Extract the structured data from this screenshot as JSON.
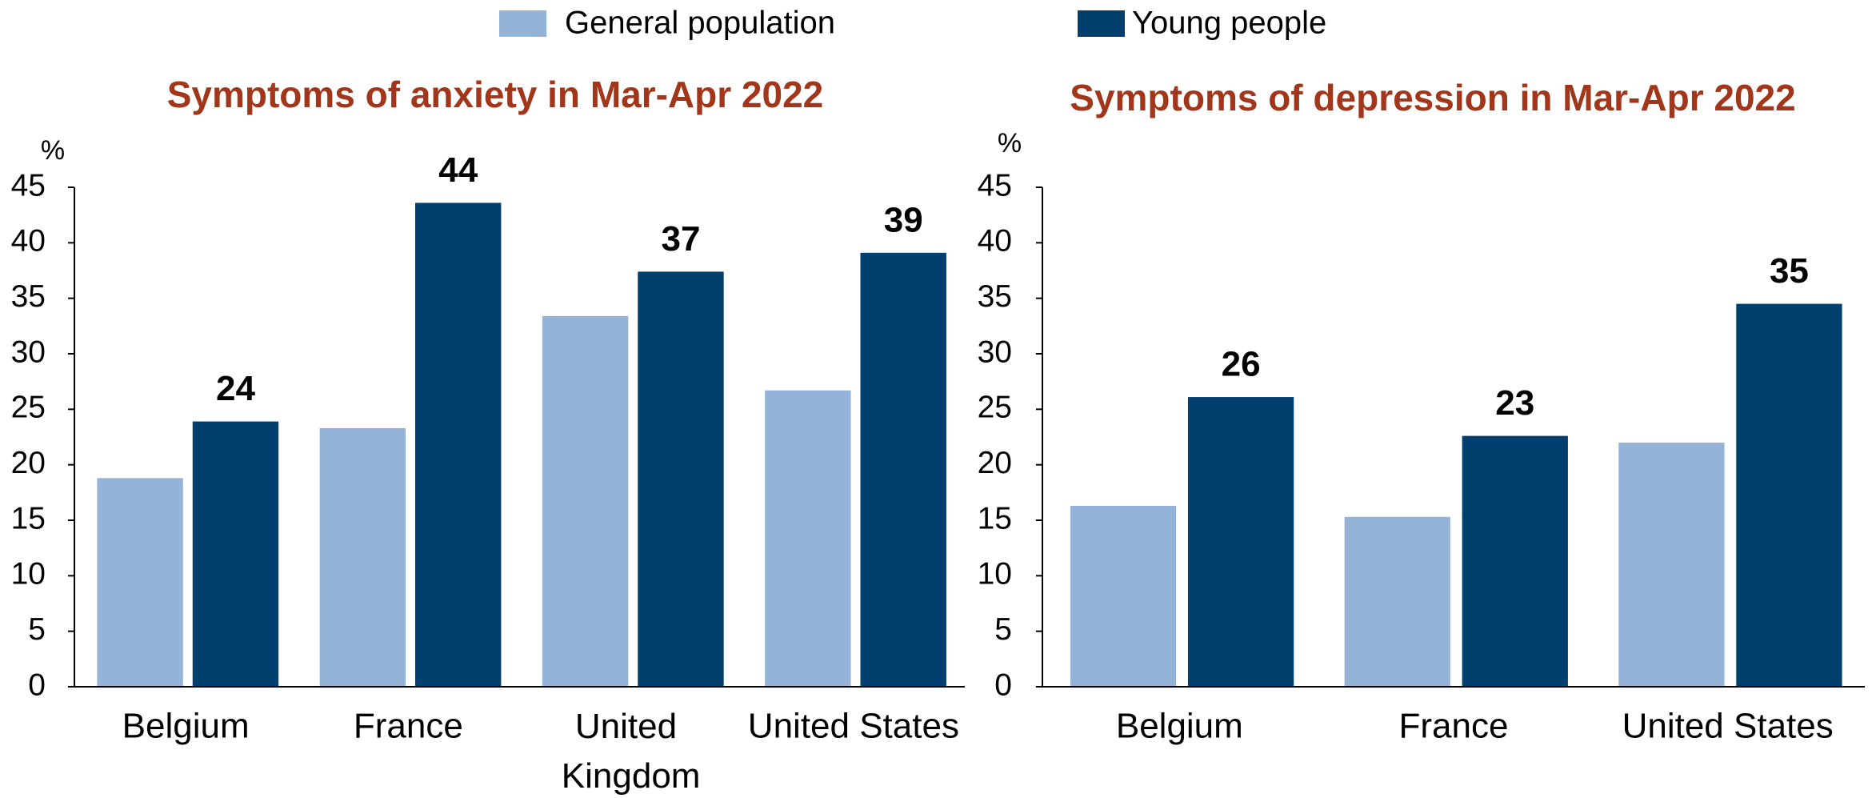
{
  "chart_data": [
    {
      "type": "bar",
      "title": "Symptoms of anxiety in Mar-Apr 2022",
      "ylabel": "%",
      "categories": [
        "Belgium",
        "France",
        "United Kingdom",
        "United States"
      ],
      "series": [
        {
          "name": "General population",
          "color": "#95b3d7",
          "values": [
            18.8,
            23.3,
            33.4,
            26.7
          ]
        },
        {
          "name": "Young people",
          "color": "#003f6e",
          "values": [
            23.9,
            43.6,
            37.4,
            39.1
          ],
          "value_labels": [
            "24",
            "44",
            "37",
            "39"
          ]
        }
      ],
      "ylim": [
        0,
        45
      ],
      "yticks": [
        0,
        5,
        10,
        15,
        20,
        25,
        30,
        35,
        40,
        45
      ]
    },
    {
      "type": "bar",
      "title": "Symptoms of depression in Mar-Apr 2022",
      "ylabel": "%",
      "categories": [
        "Belgium",
        "France",
        "United States"
      ],
      "series": [
        {
          "color": "#95b3d7",
          "values": [
            16.3,
            15.3,
            22.0
          ]
        },
        {
          "color": "#003f6e",
          "values": [
            26.1,
            22.6,
            34.5
          ],
          "value_labels": [
            "26",
            "23",
            "35"
          ]
        }
      ],
      "ylim": [
        0,
        45
      ],
      "yticks": [
        0,
        5,
        10,
        15,
        20,
        25,
        30,
        35,
        40,
        45
      ]
    }
  ]
}
